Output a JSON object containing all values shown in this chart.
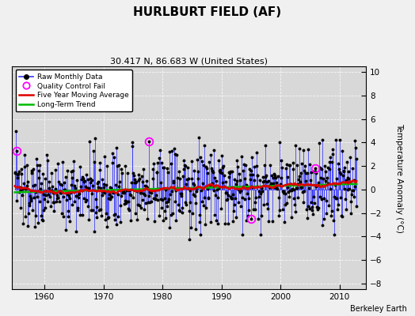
{
  "title": "HURLBURT FIELD (AF)",
  "subtitle": "30.417 N, 86.683 W (United States)",
  "attribution": "Berkeley Earth",
  "ylabel": "Temperature Anomaly (°C)",
  "xlim": [
    1954.5,
    2014.5
  ],
  "ylim": [
    -8.5,
    10.5
  ],
  "yticks": [
    -8,
    -6,
    -4,
    -2,
    0,
    2,
    4,
    6,
    8,
    10
  ],
  "xticks": [
    1960,
    1970,
    1980,
    1990,
    2000,
    2010
  ],
  "bg_color": "#d8d8d8",
  "line_color": "#3333ff",
  "marker_color": "#000000",
  "ma_color": "#dd0000",
  "trend_color": "#00bb00",
  "qc_color": "#ff00ff",
  "seed": 137,
  "n_months": 696,
  "start_year": 1955.0
}
